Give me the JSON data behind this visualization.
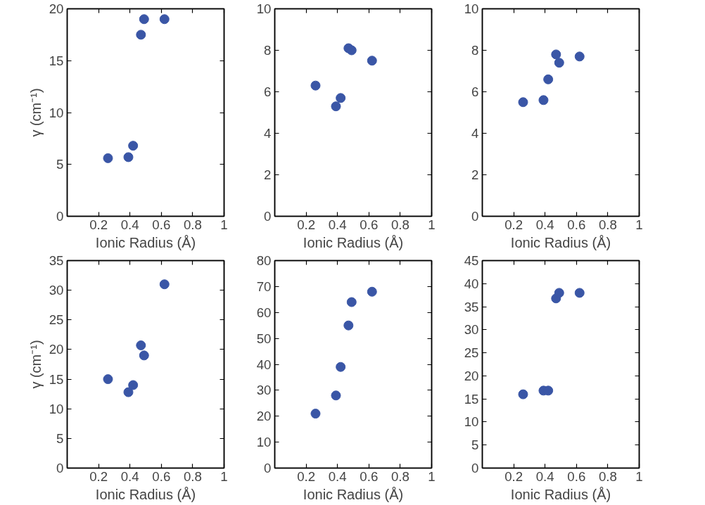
{
  "chart_data": [
    {
      "type": "scatter",
      "xlabel": "Ionic Radius (Å)",
      "ylabel": "γ (cm⁻¹)",
      "x": [
        0.26,
        0.39,
        0.42,
        0.47,
        0.49,
        0.62
      ],
      "series": [
        {
          "color": "#3a56a6",
          "values": [
            5.6,
            5.7,
            6.8,
            17.5,
            19,
            19
          ]
        }
      ],
      "xlim": [
        0,
        1
      ],
      "xticks": [
        0.2,
        0.4,
        0.6,
        0.8,
        1
      ],
      "ylim": [
        0,
        20
      ],
      "yticks": [
        0,
        5,
        10,
        15,
        20
      ],
      "marker": "circle",
      "grid": false
    },
    {
      "type": "scatter",
      "xlabel": "Ionic Radius (Å)",
      "x": [
        0.26,
        0.39,
        0.42,
        0.47,
        0.49,
        0.62
      ],
      "series": [
        {
          "color": "#3a56a6",
          "values": [
            6.3,
            5.3,
            5.7,
            8.1,
            8.0,
            7.5
          ]
        }
      ],
      "xlim": [
        0,
        1
      ],
      "xticks": [
        0.2,
        0.4,
        0.6,
        0.8,
        1
      ],
      "ylim": [
        0,
        10
      ],
      "yticks": [
        0,
        2,
        4,
        6,
        8,
        10
      ],
      "marker": "circle",
      "grid": false
    },
    {
      "type": "scatter",
      "xlabel": "Ionic Radius (Å)",
      "x": [
        0.26,
        0.39,
        0.42,
        0.47,
        0.49,
        0.62
      ],
      "series": [
        {
          "color": "#3a56a6",
          "values": [
            5.5,
            5.6,
            6.6,
            7.8,
            7.4,
            7.7
          ]
        }
      ],
      "xlim": [
        0,
        1
      ],
      "xticks": [
        0.2,
        0.4,
        0.6,
        0.8,
        1
      ],
      "ylim": [
        0,
        10
      ],
      "yticks": [
        0,
        2,
        4,
        6,
        8,
        10
      ],
      "marker": "circle",
      "grid": false
    },
    {
      "type": "scatter",
      "xlabel": "Ionic Radius (Å)",
      "ylabel": "γ (cm⁻¹)",
      "x": [
        0.26,
        0.39,
        0.42,
        0.47,
        0.49,
        0.62
      ],
      "series": [
        {
          "color": "#3a56a6",
          "values": [
            15,
            12.8,
            14,
            20.7,
            19,
            31
          ]
        }
      ],
      "xlim": [
        0,
        1
      ],
      "xticks": [
        0.2,
        0.4,
        0.6,
        0.8,
        1
      ],
      "ylim": [
        0,
        35
      ],
      "yticks": [
        0,
        5,
        10,
        15,
        20,
        25,
        30,
        35
      ],
      "marker": "circle",
      "grid": false
    },
    {
      "type": "scatter",
      "xlabel": "Ionic Radius (Å)",
      "x": [
        0.26,
        0.39,
        0.42,
        0.47,
        0.49,
        0.62
      ],
      "series": [
        {
          "color": "#3a56a6",
          "values": [
            21,
            28,
            39,
            55,
            64,
            68
          ]
        }
      ],
      "xlim": [
        0,
        1
      ],
      "xticks": [
        0.2,
        0.4,
        0.6,
        0.8,
        1
      ],
      "ylim": [
        0,
        80
      ],
      "yticks": [
        0,
        10,
        20,
        30,
        40,
        50,
        60,
        70,
        80
      ],
      "marker": "circle",
      "grid": false
    },
    {
      "type": "scatter",
      "xlabel": "Ionic Radius (Å)",
      "x": [
        0.26,
        0.39,
        0.42,
        0.47,
        0.49,
        0.62
      ],
      "series": [
        {
          "color": "#3a56a6",
          "values": [
            16,
            16.8,
            16.8,
            36.8,
            38,
            38
          ]
        }
      ],
      "xlim": [
        0,
        1
      ],
      "xticks": [
        0.2,
        0.4,
        0.6,
        0.8,
        1
      ],
      "ylim": [
        0,
        45
      ],
      "yticks": [
        0,
        5,
        10,
        15,
        20,
        25,
        30,
        35,
        40,
        45
      ],
      "marker": "circle",
      "grid": false
    }
  ]
}
